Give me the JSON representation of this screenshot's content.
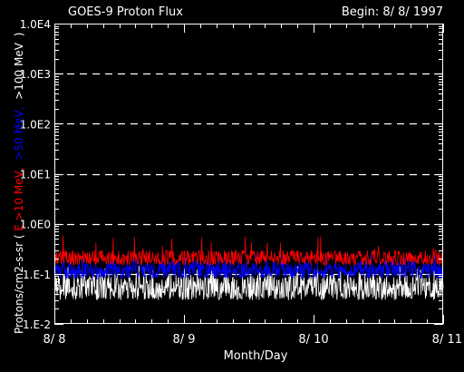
{
  "chart_data": {
    "type": "line",
    "title": "GOES-9 Proton Flux",
    "subtitle": "Begin: 8/ 8/ 1997",
    "xlabel": "Month/Day",
    "ylabel_prefix": "Protons/cm2-s-sr",
    "ylabel_paren_open": "(",
    "ylabel_paren_close": ")",
    "y_scale": "log",
    "ylim": [
      0.01,
      10000
    ],
    "xlim": [
      "1997-08-08",
      "1997-08-11"
    ],
    "grid": true,
    "y_tick_labels": [
      "1.E-2",
      "1.E-1",
      "1.0E0",
      "1.0E1",
      "1.0E2",
      "1.0E3",
      "1.0E4"
    ],
    "y_tick_values": [
      0.01,
      0.1,
      1,
      10,
      100,
      1000,
      10000
    ],
    "x_tick_labels": [
      "8/ 8",
      "8/ 9",
      "8/ 10",
      "8/ 11"
    ],
    "x_tick_values": [
      "1997-08-08",
      "1997-08-09",
      "1997-08-10",
      "1997-08-11"
    ],
    "series": [
      {
        "name": "E >10 MeV,",
        "color": "#ff0000",
        "baseline": 0.2,
        "low": 0.15,
        "high": 0.3,
        "max": 0.6
      },
      {
        "name": ">50 MeV,",
        "color": "#0000ff",
        "baseline": 0.12,
        "low": 0.08,
        "high": 0.18,
        "max": 0.25
      },
      {
        "name": ">100 MeV",
        "color": "#ffffff",
        "baseline": 0.05,
        "low": 0.03,
        "high": 0.1,
        "max": 0.15
      }
    ]
  },
  "colors": {
    "background": "#000000",
    "axes": "#ffffff",
    "grid": "#ffffff"
  }
}
